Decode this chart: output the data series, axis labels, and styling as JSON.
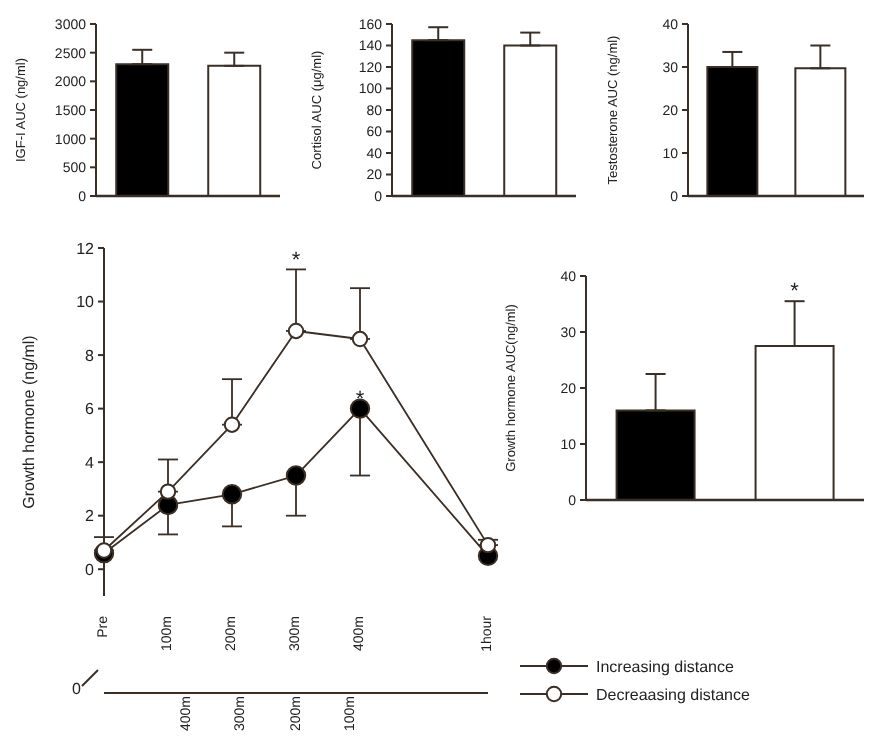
{
  "chart_data": [
    {
      "type": "bar",
      "ylabel": "IGF-I AUC (ng/ml)",
      "categories": [
        null,
        null
      ],
      "values": [
        2300,
        2270
      ],
      "colors": [
        "#000000",
        "#ffffff"
      ],
      "errors": [
        [
          2300,
          2550
        ],
        [
          2270,
          2500
        ]
      ],
      "ylim": [
        0,
        3000
      ],
      "yticks": [
        0,
        500,
        1000,
        1500,
        2000,
        2500,
        3000
      ]
    },
    {
      "type": "bar",
      "ylabel": "Cortisol AUC (μg/ml)",
      "categories": [
        null,
        null
      ],
      "values": [
        145,
        140
      ],
      "colors": [
        "#000000",
        "#ffffff"
      ],
      "errors": [
        [
          145,
          157
        ],
        [
          140,
          152
        ]
      ],
      "ylim": [
        0,
        160
      ],
      "yticks": [
        0,
        20,
        40,
        60,
        80,
        100,
        120,
        140,
        160
      ]
    },
    {
      "type": "bar",
      "ylabel": "Testosterone AUC (ng/ml)",
      "categories": [
        null,
        null
      ],
      "values": [
        30,
        29.7
      ],
      "colors": [
        "#000000",
        "#ffffff"
      ],
      "errors": [
        [
          30,
          33.5
        ],
        [
          29.7,
          35
        ]
      ],
      "ylim": [
        0,
        40
      ],
      "yticks": [
        0,
        10,
        20,
        30,
        40
      ]
    },
    {
      "type": "line",
      "ylabel": "Growth hormone (ng/ml)",
      "categories": [
        "Pre",
        "100m",
        "200m",
        "300m",
        "400m",
        null,
        "1hour"
      ],
      "ylim": [
        -1,
        12
      ],
      "yticks": [
        0,
        2,
        4,
        6,
        8,
        10,
        12
      ],
      "marker": "circle",
      "legend": "bottom right",
      "series": [
        {
          "name": "Increasing distance",
          "color": "#000000",
          "values": [
            0.6,
            2.4,
            2.8,
            3.5,
            6.0,
            null,
            0.5
          ],
          "errors": [
            null,
            [
              1.3,
              2.4
            ],
            [
              1.6,
              2.8
            ],
            [
              2.0,
              3.5
            ],
            [
              3.5,
              6.0
            ],
            null,
            null
          ]
        },
        {
          "name": "Decreaasing distance",
          "color": "#ffffff",
          "values": [
            0.7,
            2.9,
            5.4,
            8.9,
            8.6,
            null,
            0.9
          ],
          "errors": [
            [
              0.7,
              1.2
            ],
            [
              2.9,
              4.1
            ],
            [
              5.4,
              7.1
            ],
            [
              8.9,
              11.2
            ],
            [
              8.6,
              10.5
            ],
            null,
            [
              0.9,
              1.1
            ]
          ]
        }
      ],
      "annotations": [
        {
          "text": "*",
          "x": "300m",
          "y": 8.9
        },
        {
          "text": "*",
          "x": "400m",
          "y": 6.0
        },
        "0",
        "400m",
        "300m",
        "200m",
        "100m"
      ]
    },
    {
      "type": "bar",
      "ylabel": "Growth hormone AUC(ng/ml)",
      "categories": [
        null,
        null
      ],
      "values": [
        16,
        27.5
      ],
      "colors": [
        "#000000",
        "#ffffff"
      ],
      "errors": [
        [
          16,
          22.5
        ],
        [
          27.5,
          35.5
        ]
      ],
      "ylim": [
        0,
        40
      ],
      "yticks": [
        0,
        10,
        20,
        30,
        40
      ],
      "annotations": [
        {
          "text": "*",
          "y": 27.5
        }
      ]
    }
  ]
}
